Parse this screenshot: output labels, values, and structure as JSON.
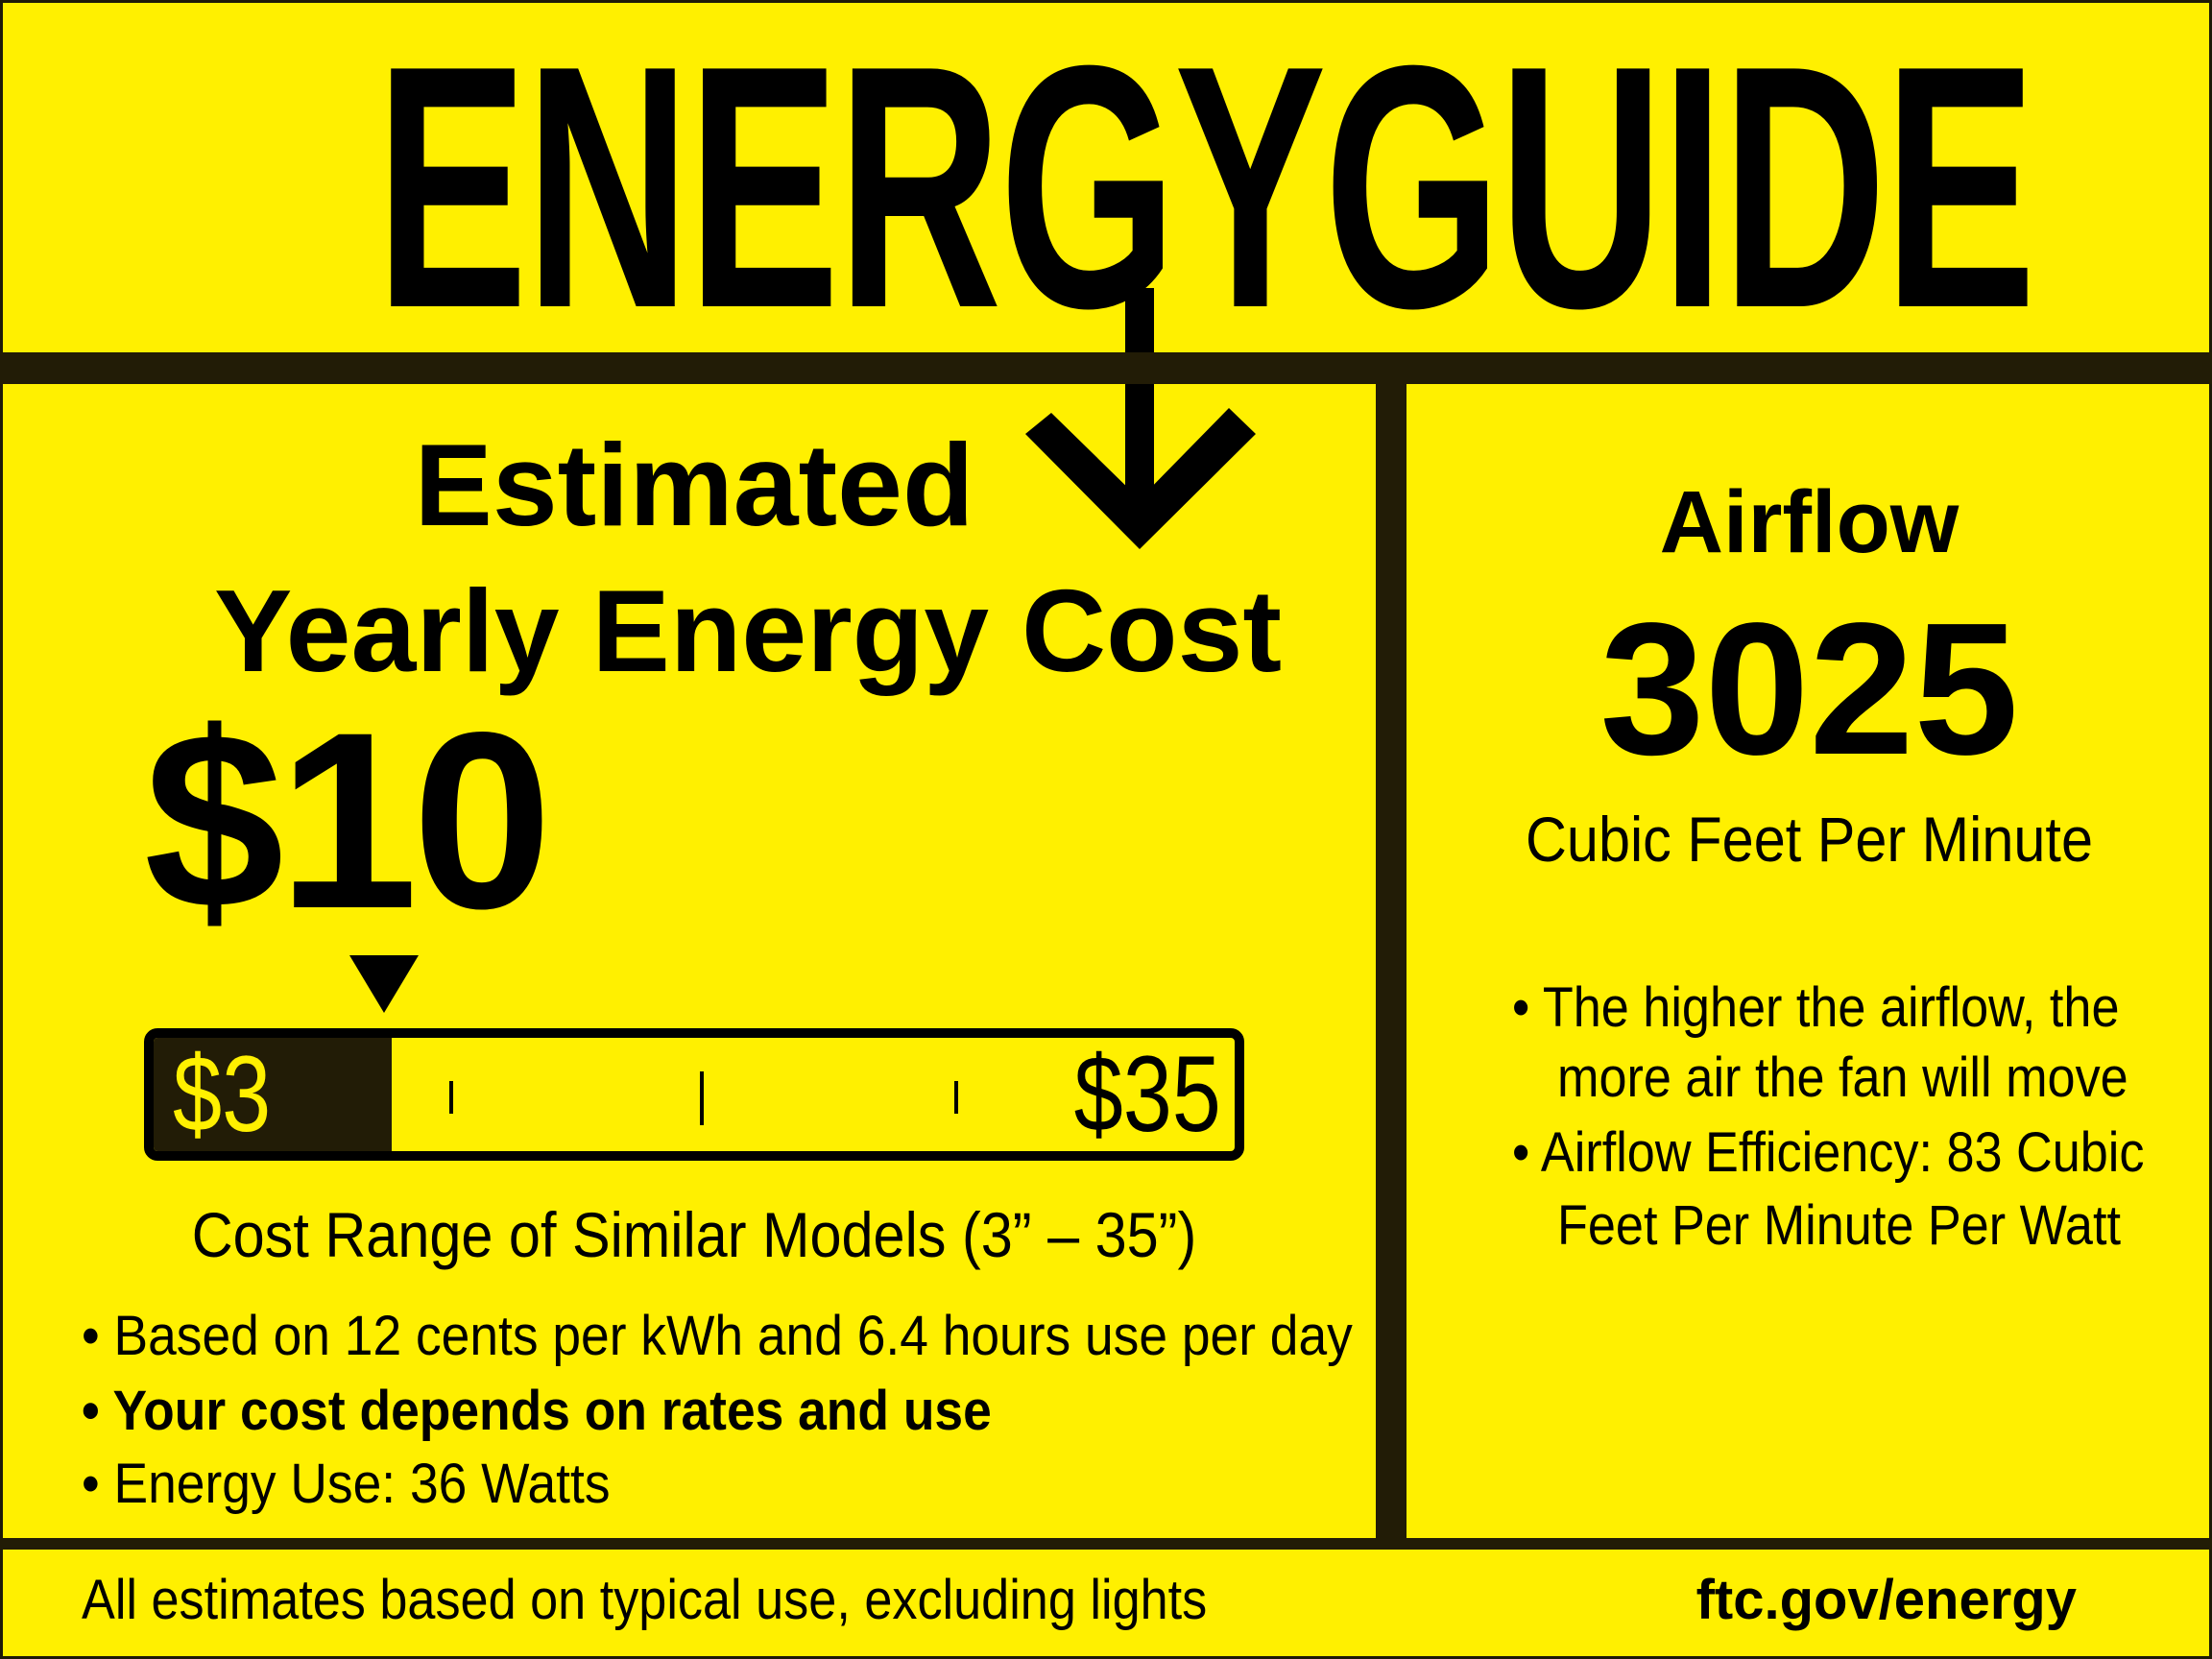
{
  "colors": {
    "background": "#fff000",
    "ink": "#000000",
    "dark_band": "#221c06"
  },
  "header": {
    "title": "ENERGYGUIDE"
  },
  "cost": {
    "heading_line1": "Estimated",
    "heading_line2": "Yearly Energy Cost",
    "value": "$10",
    "scale": {
      "low_label": "$3",
      "high_label": "$35",
      "low": 3,
      "high": 35,
      "marker_value": 10
    },
    "range_caption": "Cost Range of Similar Models (3” – 35”)",
    "bullets": [
      "• Based on 12 cents per kWh and 6.4 hours use per day",
      "• Your cost depends on rates and use",
      "• Energy Use: 36 Watts"
    ]
  },
  "airflow": {
    "heading": "Airflow",
    "value": "3025",
    "unit": "Cubic Feet Per Minute",
    "bullets": [
      "• The higher the airflow, the",
      "  more air the fan will move",
      "• Airflow Efficiency: 83 Cubic",
      "  Feet Per Minute Per Watt"
    ]
  },
  "footer": {
    "note": "All estimates based on typical use, excluding lights",
    "link": "ftc.gov/energy"
  }
}
